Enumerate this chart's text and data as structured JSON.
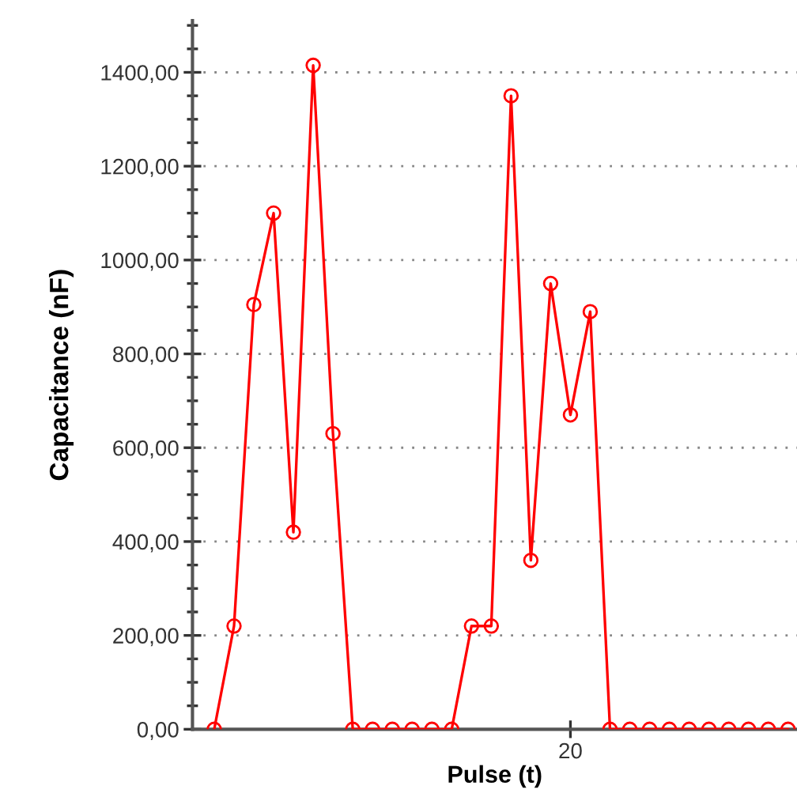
{
  "chart_data": {
    "type": "line",
    "xlabel": "Pulse (t)",
    "ylabel": "Capacitance (nF)",
    "categories": [
      null,
      null,
      null,
      null,
      null,
      null,
      null,
      null,
      null,
      null,
      null,
      null,
      null,
      null,
      null,
      null,
      null,
      null,
      "20",
      null,
      null,
      null,
      null,
      null,
      null,
      null,
      null,
      null,
      null,
      null
    ],
    "series": [
      {
        "color": "#ff0000",
        "values": [
          0,
          220,
          905,
          1100,
          420,
          1415,
          630,
          0,
          0,
          0,
          0,
          0,
          0,
          220,
          220,
          1350,
          360,
          950,
          670,
          890,
          0,
          0,
          0,
          0,
          0,
          0,
          0,
          0,
          0,
          0
        ]
      }
    ],
    "marker": "circle",
    "line_style": "solid",
    "grid": "y",
    "legend": false,
    "ylim": [
      0,
      1510
    ],
    "yticks": [
      {
        "value": 0,
        "label": "0,00"
      },
      {
        "value": 50,
        "label": null
      },
      {
        "value": 100,
        "label": null
      },
      {
        "value": 150,
        "label": null
      },
      {
        "value": 200,
        "label": "200,00"
      },
      {
        "value": 250,
        "label": null
      },
      {
        "value": 300,
        "label": null
      },
      {
        "value": 350,
        "label": null
      },
      {
        "value": 400,
        "label": "400,00"
      },
      {
        "value": 450,
        "label": null
      },
      {
        "value": 500,
        "label": null
      },
      {
        "value": 550,
        "label": null
      },
      {
        "value": 600,
        "label": "600,00"
      },
      {
        "value": 650,
        "label": null
      },
      {
        "value": 700,
        "label": null
      },
      {
        "value": 750,
        "label": null
      },
      {
        "value": 800,
        "label": "800,00"
      },
      {
        "value": 850,
        "label": null
      },
      {
        "value": 900,
        "label": null
      },
      {
        "value": 950,
        "label": null
      },
      {
        "value": 1000,
        "label": "1000,00"
      },
      {
        "value": 1050,
        "label": null
      },
      {
        "value": 1100,
        "label": null
      },
      {
        "value": 1150,
        "label": null
      },
      {
        "value": 1200,
        "label": "1200,00"
      },
      {
        "value": 1250,
        "label": null
      },
      {
        "value": 1300,
        "label": null
      },
      {
        "value": 1350,
        "label": null
      },
      {
        "value": 1400,
        "label": "1400,00"
      },
      {
        "value": 1450,
        "label": null
      },
      {
        "value": 1500,
        "label": null
      }
    ]
  }
}
